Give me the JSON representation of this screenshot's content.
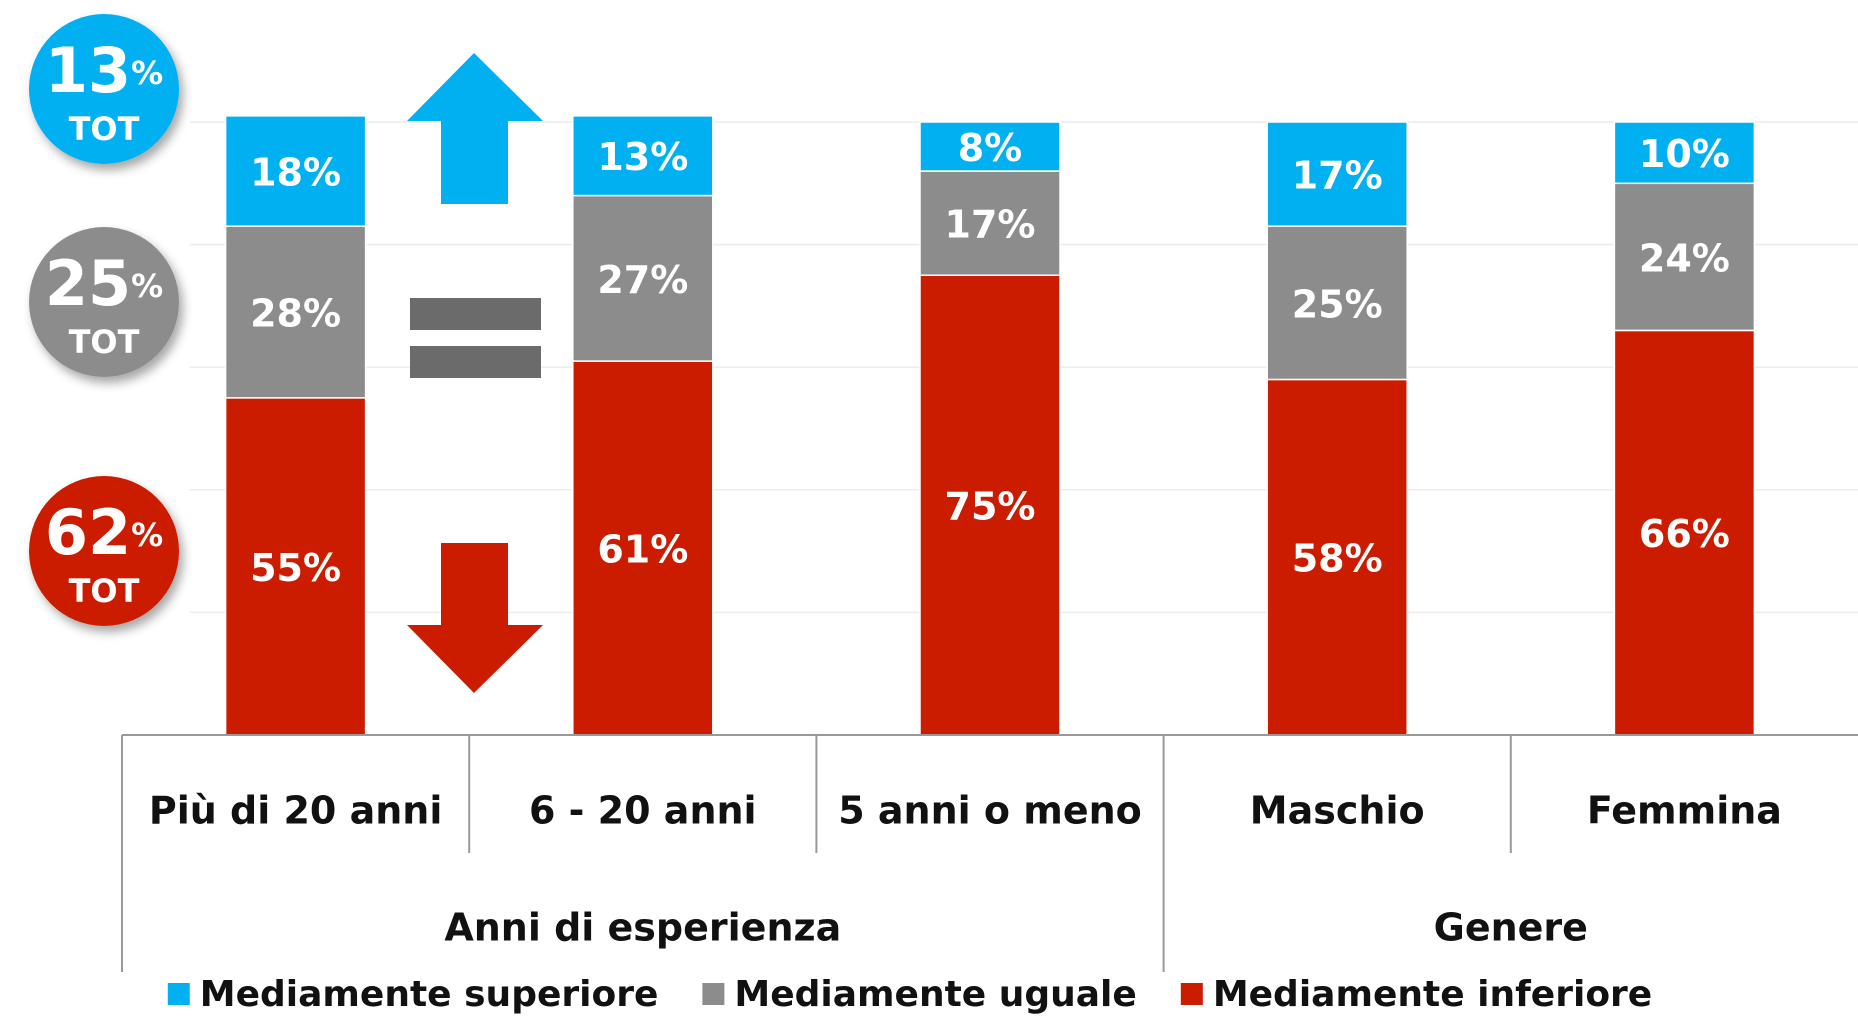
{
  "chart_data": {
    "type": "stacked_bar",
    "categories": [
      "Più di 20 anni",
      "6 - 20 anni",
      "5 anni o meno",
      "Maschio",
      "Femmina"
    ],
    "groups": [
      {
        "label": "Anni di esperienza",
        "span": 3
      },
      {
        "label": "Genere",
        "span": 2
      }
    ],
    "series": [
      {
        "name": "Mediamente superiore",
        "color": "#00b0f0",
        "values": [
          18,
          13,
          8,
          17,
          10
        ],
        "value_labels": [
          "18%",
          "13%",
          "8%",
          "17%",
          "10%"
        ]
      },
      {
        "name": "Mediamente uguale",
        "color": "#8c8c8c",
        "values": [
          28,
          27,
          17,
          25,
          24
        ],
        "value_labels": [
          "28%",
          "27%",
          "17%",
          "25%",
          "24%"
        ]
      },
      {
        "name": "Mediamente inferiore",
        "color": "#cc1c00",
        "values": [
          55,
          61,
          75,
          58,
          66
        ],
        "value_labels": [
          "55%",
          "61%",
          "75%",
          "58%",
          "66%"
        ]
      }
    ],
    "ylim": [
      0,
      100
    ],
    "yticks": [
      0,
      20,
      40,
      60,
      80,
      100
    ],
    "grid": true,
    "badges": [
      {
        "value": "13",
        "unit": "%",
        "label": "TOT",
        "color": "#00b0f0"
      },
      {
        "value": "25",
        "unit": "%",
        "label": "TOT",
        "color": "#8c8c8c"
      },
      {
        "value": "62",
        "unit": "%",
        "label": "TOT",
        "color": "#cc1c00"
      }
    ]
  }
}
